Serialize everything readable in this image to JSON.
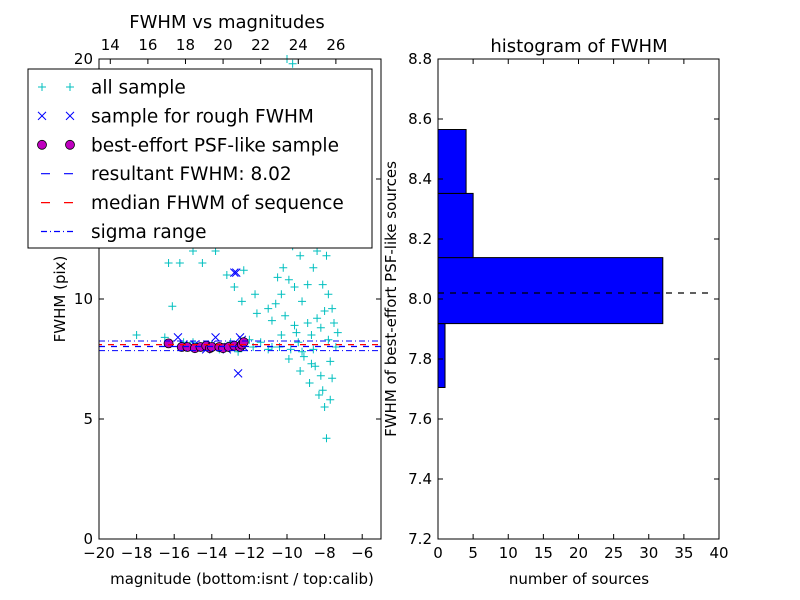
{
  "chart_data": [
    {
      "type": "scatter",
      "title": "FWHM vs magnitudes",
      "xlabel": "magnitude (bottom:isnt / top:calib)",
      "ylabel": "FWHM (pix)",
      "xlim": [
        -20,
        -5
      ],
      "ylim": [
        0,
        20
      ],
      "x_ticks": [
        "−20",
        "−18",
        "−16",
        "−14",
        "−12",
        "−10",
        "−8",
        "−6"
      ],
      "x_tick_values": [
        -20,
        -18,
        -16,
        -14,
        -12,
        -10,
        -8,
        -6
      ],
      "y_ticks": [
        "0",
        "5",
        "10",
        "15",
        "20"
      ],
      "y_tick_values": [
        0,
        5,
        10,
        15,
        20
      ],
      "top_ticks": [
        "14",
        "16",
        "18",
        "20",
        "22",
        "24",
        "26"
      ],
      "top_tick_values": [
        14,
        16,
        18,
        20,
        22,
        24,
        26
      ],
      "top_offset": 33.4,
      "legend_position": "upper-left",
      "lines": {
        "resultant_fwhm": 8.02,
        "median": 8.1,
        "sigma_lower": 7.85,
        "sigma_upper": 8.25
      },
      "series": [
        {
          "name": "all sample",
          "marker": "plus",
          "color": "#00BFBF",
          "points": [
            [
              -18.0,
              8.5
            ],
            [
              -16.1,
              9.7
            ],
            [
              -16.3,
              11.5
            ],
            [
              -15.7,
              11.5
            ],
            [
              -15.0,
              12.0
            ],
            [
              -14.5,
              11.5
            ],
            [
              -13.8,
              12.0
            ],
            [
              -13.2,
              11.0
            ],
            [
              -12.8,
              10.5
            ],
            [
              -12.3,
              11.2
            ],
            [
              -11.7,
              10.2
            ],
            [
              -11.2,
              12.5
            ],
            [
              -10.8,
              8.0
            ],
            [
              -10.3,
              8.5
            ],
            [
              -9.9,
              7.5
            ],
            [
              -9.3,
              7.0
            ],
            [
              -8.8,
              6.5
            ],
            [
              -8.3,
              6.0
            ],
            [
              -8.0,
              5.5
            ],
            [
              -7.7,
              5.8
            ],
            [
              -7.9,
              4.2
            ],
            [
              -8.1,
              6.2
            ],
            [
              -7.6,
              6.7
            ],
            [
              -8.2,
              6.8
            ],
            [
              -8.5,
              7.2
            ],
            [
              -8.7,
              7.3
            ],
            [
              -9.1,
              7.6
            ],
            [
              -9.6,
              8.9
            ],
            [
              -10.1,
              9.3
            ],
            [
              -10.6,
              9.8
            ],
            [
              -9.2,
              9.9
            ],
            [
              -8.9,
              10.6
            ],
            [
              -8.6,
              11.3
            ],
            [
              -8.4,
              12.0
            ],
            [
              -8.3,
              12.8
            ],
            [
              -8.6,
              13.5
            ],
            [
              -8.8,
              14.8
            ],
            [
              -9.0,
              15.6
            ],
            [
              -9.2,
              17.0
            ],
            [
              -9.5,
              18.2
            ],
            [
              -9.8,
              19.0
            ],
            [
              -10.0,
              20.0
            ],
            [
              -9.7,
              19.8
            ],
            [
              -8.2,
              8.8
            ],
            [
              -8.0,
              9.5
            ],
            [
              -7.8,
              10.2
            ],
            [
              -7.5,
              9.0
            ],
            [
              -7.4,
              8.0
            ],
            [
              -7.7,
              7.4
            ],
            [
              -8.4,
              9.2
            ],
            [
              -8.7,
              8.5
            ],
            [
              -9.4,
              8.2
            ],
            [
              -9.6,
              10.5
            ],
            [
              -10.2,
              11.3
            ],
            [
              -9.1,
              12.6
            ],
            [
              -8.5,
              14.2
            ],
            [
              -8.3,
              16.0
            ],
            [
              -8.6,
              17.2
            ],
            [
              -9.0,
              13.2
            ],
            [
              -9.3,
              11.8
            ],
            [
              -10.5,
              10.9
            ],
            [
              -11.0,
              9.6
            ],
            [
              -11.4,
              8.2
            ],
            [
              -12.0,
              8.3
            ],
            [
              -13.0,
              8.2
            ],
            [
              -14.0,
              8.1
            ],
            [
              -15.0,
              8.2
            ],
            [
              -16.5,
              8.4
            ],
            [
              -15.5,
              8.2
            ],
            [
              -14.8,
              8.0
            ],
            [
              -13.6,
              7.9
            ],
            [
              -12.6,
              7.8
            ],
            [
              -11.8,
              8.0
            ],
            [
              -11.0,
              7.9
            ],
            [
              -10.4,
              8.0
            ],
            [
              -9.8,
              7.9
            ],
            [
              -9.5,
              8.6
            ],
            [
              -8.9,
              9.0
            ],
            [
              -8.1,
              10.6
            ],
            [
              -7.9,
              11.8
            ],
            [
              -8.0,
              13.4
            ],
            [
              -8.2,
              14.6
            ],
            [
              -8.4,
              15.2
            ],
            [
              -8.9,
              16.6
            ],
            [
              -9.4,
              14.4
            ],
            [
              -9.7,
              12.2
            ],
            [
              -9.9,
              10.8
            ],
            [
              -10.3,
              10.2
            ],
            [
              -10.8,
              9.1
            ],
            [
              -11.6,
              9.4
            ],
            [
              -12.4,
              9.9
            ],
            [
              -7.6,
              9.6
            ],
            [
              -7.3,
              8.6
            ],
            [
              -7.8,
              8.3
            ],
            [
              -8.6,
              7.9
            ],
            [
              -9.2,
              7.8
            ]
          ]
        },
        {
          "name": "sample for rough FWHM",
          "marker": "x",
          "color": "#0000FF",
          "points": [
            [
              -15.8,
              8.4
            ],
            [
              -15.5,
              8.1
            ],
            [
              -15.2,
              8.0
            ],
            [
              -14.9,
              8.1
            ],
            [
              -14.6,
              8.0
            ],
            [
              -14.3,
              7.9
            ],
            [
              -14.0,
              8.1
            ],
            [
              -13.8,
              8.4
            ],
            [
              -13.5,
              8.0
            ],
            [
              -13.2,
              7.9
            ],
            [
              -13.0,
              8.0
            ],
            [
              -12.8,
              11.1
            ],
            [
              -12.7,
              11.1
            ],
            [
              -12.5,
              8.4
            ],
            [
              -12.4,
              8.3
            ],
            [
              -12.3,
              8.0
            ],
            [
              -12.6,
              6.9
            ]
          ]
        },
        {
          "name": "best-effort PSF-like sample",
          "marker": "circle",
          "color": "#BF00BF",
          "points": [
            [
              -16.3,
              8.15
            ],
            [
              -15.6,
              8.0
            ],
            [
              -15.3,
              8.0
            ],
            [
              -14.9,
              7.95
            ],
            [
              -14.6,
              8.0
            ],
            [
              -14.3,
              8.05
            ],
            [
              -14.1,
              7.95
            ],
            [
              -14.0,
              8.0
            ],
            [
              -13.6,
              8.0
            ],
            [
              -13.4,
              7.95
            ],
            [
              -13.1,
              8.0
            ],
            [
              -12.8,
              8.05
            ],
            [
              -12.5,
              8.0
            ],
            [
              -12.4,
              8.1
            ],
            [
              -12.3,
              8.2
            ]
          ]
        }
      ]
    },
    {
      "type": "bar",
      "orientation": "horizontal",
      "title": "histogram of FWHM",
      "xlabel": "number of sources",
      "ylabel": "FWHM of best-effort PSF-like sources",
      "xlim": [
        0,
        40
      ],
      "ylim": [
        7.2,
        8.8
      ],
      "x_ticks": [
        "0",
        "5",
        "10",
        "15",
        "20",
        "25",
        "30",
        "35",
        "40"
      ],
      "x_tick_values": [
        0,
        5,
        10,
        15,
        20,
        25,
        30,
        35,
        40
      ],
      "y_ticks": [
        "7.2",
        "7.4",
        "7.6",
        "7.8",
        "8.0",
        "8.2",
        "8.4",
        "8.6",
        "8.8"
      ],
      "y_tick_values": [
        7.2,
        7.4,
        7.6,
        7.8,
        8.0,
        8.2,
        8.4,
        8.6,
        8.8
      ],
      "color": "#0000FF",
      "reference_line": 8.02,
      "bins": [
        {
          "from": 7.705,
          "to": 7.918,
          "count": 1
        },
        {
          "from": 7.918,
          "to": 8.138,
          "count": 32
        },
        {
          "from": 8.138,
          "to": 8.352,
          "count": 5
        },
        {
          "from": 8.352,
          "to": 8.565,
          "count": 4
        }
      ]
    }
  ],
  "legend": {
    "items": [
      {
        "label": "all sample",
        "marker": "plus",
        "color": "#00BFBF"
      },
      {
        "label": "sample for rough FWHM",
        "marker": "x",
        "color": "#0000FF"
      },
      {
        "label": "best-effort PSF-like sample",
        "marker": "circle",
        "color": "#BF00BF"
      },
      {
        "label": "resultant FWHM: 8.02",
        "marker": "dash",
        "color": "#0000FF"
      },
      {
        "label": "median FHWM of sequence",
        "marker": "dash",
        "color": "#FF0000"
      },
      {
        "label": "sigma range",
        "marker": "dashdot",
        "color": "#0000FF"
      }
    ]
  }
}
